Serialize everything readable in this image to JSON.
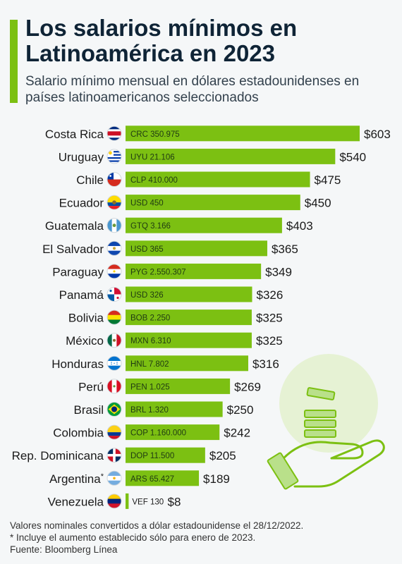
{
  "title": "Los salarios mínimos en Latinoamérica en 2023",
  "subtitle": "Salario mínimo mensual en dólares estadounidenses en países latinoamericanos seleccionados",
  "colors": {
    "bar": "#7cc012",
    "accent": "#7cc012",
    "title": "#0f2436"
  },
  "chart_data": {
    "type": "bar",
    "orientation": "horizontal",
    "title": "Los salarios mínimos en Latinoamérica en 2023",
    "subtitle": "Salario mínimo mensual en dólares estadounidenses en países latinoamericanos seleccionados",
    "xlabel": "",
    "ylabel": "",
    "grid": false,
    "legend": "none",
    "xlim": [
      0,
      603
    ],
    "categories": [
      "Costa Rica",
      "Uruguay",
      "Chile",
      "Ecuador",
      "Guatemala",
      "El Salvador",
      "Paraguay",
      "Panamá",
      "Bolivia",
      "México",
      "Honduras",
      "Perú",
      "Brasil",
      "Colombia",
      "Rep. Dominicana",
      "Argentina",
      "Venezuela"
    ],
    "category_marks": [
      "",
      "",
      "",
      "",
      "",
      "",
      "",
      "",
      "",
      "",
      "",
      "",
      "",
      "",
      "",
      "*",
      ""
    ],
    "values": [
      603,
      540,
      475,
      450,
      403,
      365,
      349,
      326,
      325,
      325,
      316,
      269,
      250,
      242,
      205,
      189,
      8
    ],
    "value_labels": [
      "$603",
      "$540",
      "$475",
      "$450",
      "$403",
      "$365",
      "$349",
      "$326",
      "$325",
      "$325",
      "$316",
      "$269",
      "$250",
      "$242",
      "$205",
      "$189",
      "$8"
    ],
    "local_currency_labels": [
      "CRC 350.975",
      "UYU 21.106",
      "CLP 410.000",
      "USD 450",
      "GTQ 3.166",
      "USD 365",
      "PYG 2.550.307",
      "USD 326",
      "BOB 2.250",
      "MXN 6.310",
      "HNL 7.802",
      "PEN 1.025",
      "BRL 1.320",
      "COP 1.160.000",
      "DOP 11.500",
      "ARS 65.427",
      "VEF 130"
    ],
    "flag_icons": [
      "flag-costa-rica-icon",
      "flag-uruguay-icon",
      "flag-chile-icon",
      "flag-ecuador-icon",
      "flag-guatemala-icon",
      "flag-el-salvador-icon",
      "flag-paraguay-icon",
      "flag-panama-icon",
      "flag-bolivia-icon",
      "flag-mexico-icon",
      "flag-honduras-icon",
      "flag-peru-icon",
      "flag-brasil-icon",
      "flag-colombia-icon",
      "flag-rep-dominicana-icon",
      "flag-argentina-icon",
      "flag-venezuela-icon"
    ]
  },
  "footnotes": [
    "Valores nominales convertidos a dólar estadounidense el 28/12/2022.",
    "* Incluye el aumento establecido sólo para enero de 2023.",
    "Fuente: Bloomberg Línea"
  ]
}
